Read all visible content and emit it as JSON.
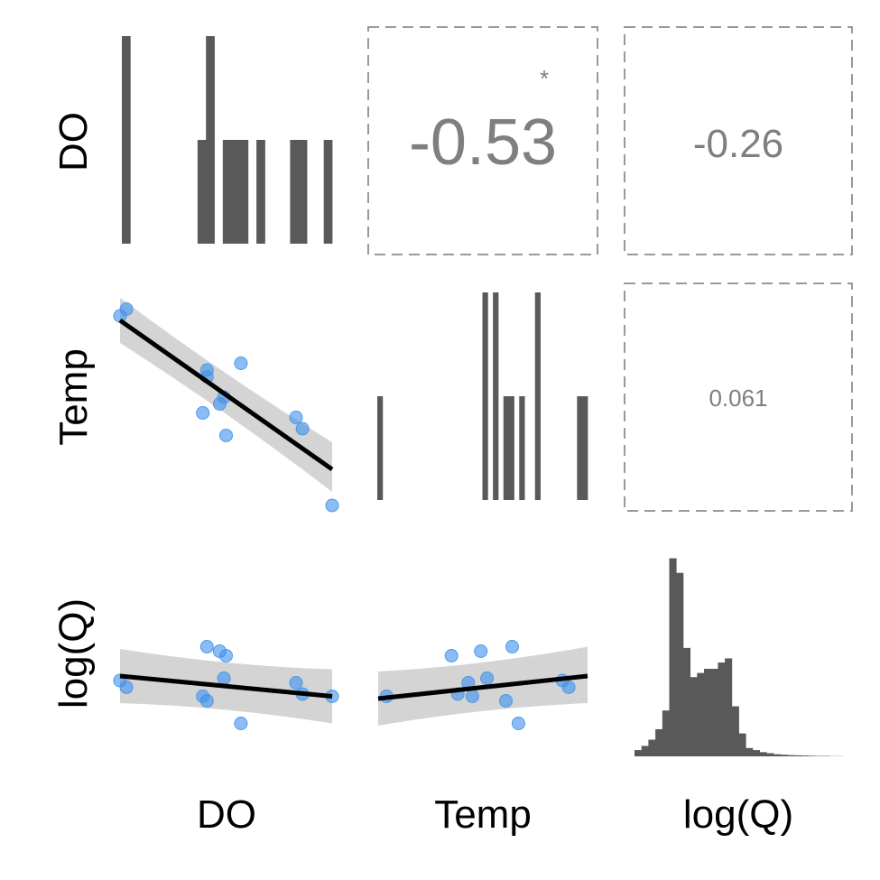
{
  "chart_data": {
    "type": "scatter",
    "variables": [
      "DO",
      "Temp",
      "log(Q)"
    ],
    "colors": {
      "bar": "#595959",
      "point": "#3d8fef",
      "point_stroke": "#4a9ae6",
      "fit_line": "#000000",
      "ci_band": "#cccccc",
      "corr_text": "#7f7f7f",
      "cell_border": "#999999"
    },
    "correlations": [
      {
        "row": "DO",
        "col": "Temp",
        "value": "-0.53",
        "significance": "*",
        "font_size": "large"
      },
      {
        "row": "DO",
        "col": "log(Q)",
        "value": "-0.26",
        "significance": "",
        "font_size": "medium"
      },
      {
        "row": "Temp",
        "col": "log(Q)",
        "value": "0.061",
        "significance": "",
        "font_size": "small"
      }
    ],
    "observations": {
      "DO": [
        0.0,
        0.03,
        0.41,
        0.41,
        0.39,
        0.47,
        0.5,
        0.57,
        0.49,
        0.83,
        0.86,
        1.0
      ],
      "Temp": [
        0.88,
        0.91,
        0.64,
        0.61,
        0.45,
        0.49,
        0.35,
        0.67,
        0.52,
        0.43,
        0.38,
        0.04
      ],
      "logQ": [
        0.4,
        0.37,
        0.55,
        0.31,
        0.33,
        0.53,
        0.51,
        0.21,
        0.41,
        0.39,
        0.34,
        0.33
      ]
    },
    "fits": {
      "Temp_vs_DO": {
        "start": 0.86,
        "end": 0.2,
        "band_start": [
          0.76,
          0.96
        ],
        "band_end": [
          0.1,
          0.32
        ]
      },
      "logQ_vs_DO": {
        "start": 0.42,
        "end": 0.33,
        "band_start": [
          0.3,
          0.54
        ],
        "band_end": [
          0.21,
          0.45
        ]
      },
      "logQ_vs_Temp": {
        "start": 0.32,
        "end": 0.42,
        "band_start": [
          0.2,
          0.44
        ],
        "band_end": [
          0.3,
          0.55
        ]
      }
    },
    "histograms": {
      "DO": [
        1.0,
        0,
        0,
        0,
        0,
        0,
        0,
        0,
        0,
        0.5,
        1.0,
        0,
        0.5,
        0.5,
        0.5,
        0,
        0.5,
        0,
        0,
        0,
        0.5,
        0.5,
        0,
        0,
        0.5
      ],
      "Temp": [
        0.5,
        0,
        0,
        0,
        0,
        0,
        0,
        0,
        0,
        0,
        0,
        0,
        0,
        0,
        0,
        0,
        0,
        0,
        0,
        0,
        1.0,
        0,
        1.0,
        0,
        0.5,
        0.5,
        0,
        0.5,
        0,
        0,
        1.0,
        0,
        0,
        0,
        0,
        0,
        0,
        0,
        0.5,
        0.5
      ],
      "logQ": [
        0.03,
        0.05,
        0.08,
        0.13,
        0.22,
        0.95,
        0.88,
        0.52,
        0.38,
        0.4,
        0.42,
        0.42,
        0.45,
        0.47,
        0.24,
        0.11,
        0.04,
        0.03,
        0.02,
        0.015,
        0.01,
        0.008,
        0.006,
        0.005,
        0.004,
        0.003,
        0.002,
        0.002,
        0.001,
        0.001
      ]
    }
  }
}
